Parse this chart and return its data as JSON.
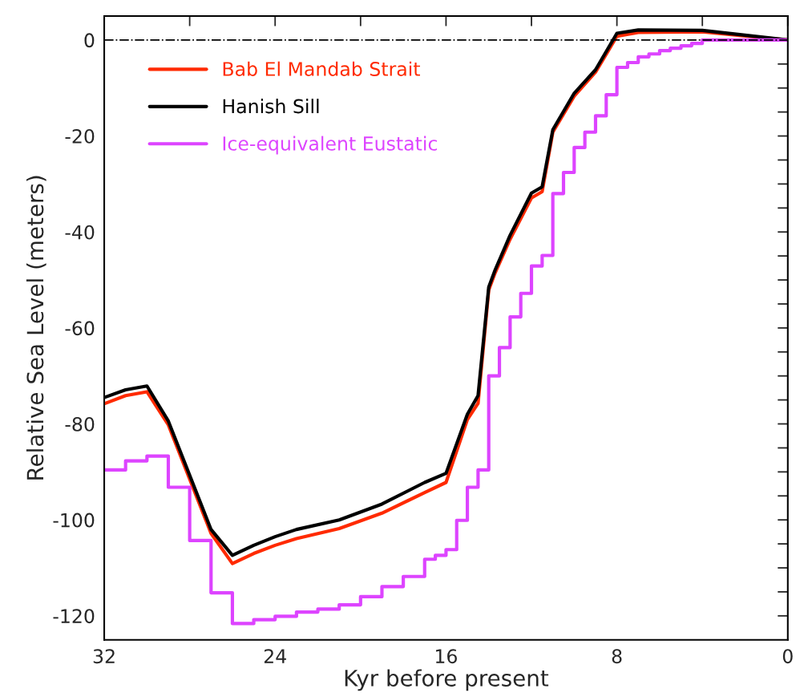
{
  "chart_data": {
    "type": "line",
    "xlabel": "Kyr before present",
    "ylabel": "Relative Sea Level (meters)",
    "xlim": [
      32,
      0
    ],
    "ylim": [
      -125,
      5
    ],
    "xticks": [
      32,
      {
        "value": 28,
        "label": null
      },
      24,
      {
        "value": 20,
        "label": null
      },
      16,
      {
        "value": 12,
        "label": null
      },
      8,
      {
        "value": 4,
        "label": null
      },
      0
    ],
    "yticks": [
      {
        "value": -120,
        "label": "-120"
      },
      {
        "value": -115,
        "label": null
      },
      {
        "value": -110,
        "label": null
      },
      {
        "value": -105,
        "label": null
      },
      {
        "value": -100,
        "label": "-100"
      },
      {
        "value": -95,
        "label": null
      },
      {
        "value": -90,
        "label": null
      },
      {
        "value": -85,
        "label": null
      },
      {
        "value": -80,
        "label": "-80"
      },
      {
        "value": -75,
        "label": null
      },
      {
        "value": -70,
        "label": null
      },
      {
        "value": -65,
        "label": null
      },
      {
        "value": -60,
        "label": "-60"
      },
      {
        "value": -55,
        "label": null
      },
      {
        "value": -50,
        "label": null
      },
      {
        "value": -45,
        "label": null
      },
      {
        "value": -40,
        "label": "-40"
      },
      {
        "value": -35,
        "label": null
      },
      {
        "value": -30,
        "label": null
      },
      {
        "value": -25,
        "label": null
      },
      {
        "value": -20,
        "label": "-20"
      },
      {
        "value": -15,
        "label": null
      },
      {
        "value": -10,
        "label": null
      },
      {
        "value": -5,
        "label": null
      },
      0
    ],
    "grid": false,
    "legend": "top left",
    "ref_lines": [
      {
        "axis": "y",
        "value": 0,
        "label": null,
        "color": "#000000",
        "line_style": "dashdot"
      }
    ],
    "series": [
      {
        "name": "Bab El Mandab Strait",
        "color": "#ff2a00",
        "x": [
          32,
          31,
          30,
          29,
          27,
          26,
          25,
          24,
          23,
          21,
          19,
          17,
          16,
          15,
          14.5,
          14,
          13.7,
          13,
          12,
          11.5,
          11,
          10,
          9,
          8,
          7,
          4,
          0
        ],
        "values": [
          -75.8,
          -74.1,
          -73.3,
          -80.2,
          -102.8,
          -109.1,
          -107,
          -105.3,
          -103.9,
          -101.8,
          -98.6,
          -94.3,
          -92.2,
          -79.1,
          -75.7,
          -52.1,
          -48.5,
          -41.5,
          -32.9,
          -31.6,
          -19.2,
          -11.7,
          -6.7,
          0.8,
          1.6,
          1.7,
          0
        ]
      },
      {
        "name": "Hanish Sill",
        "color": "#000000",
        "x": [
          32,
          31,
          30,
          29,
          27,
          26,
          25,
          24,
          23,
          21,
          19,
          17,
          16,
          15,
          14.5,
          14,
          13.7,
          13,
          12,
          11.5,
          11,
          10,
          9,
          8,
          7,
          4,
          0
        ],
        "values": [
          -74.5,
          -72.9,
          -72.1,
          -79.4,
          -102,
          -107.4,
          -105.3,
          -103.5,
          -102,
          -100,
          -96.7,
          -92.2,
          -90.3,
          -78,
          -74.1,
          -51.5,
          -47.9,
          -40.7,
          -31.9,
          -30.6,
          -18.7,
          -11.1,
          -6.2,
          1.4,
          2.1,
          2,
          0
        ]
      },
      {
        "name": "Ice-equivalent Eustatic",
        "color": "#dd44ff",
        "type": "step",
        "x": [
          32,
          31,
          30,
          29,
          28,
          27,
          26,
          25,
          24,
          23,
          22,
          21,
          20,
          19,
          18,
          17,
          16.5,
          16,
          15.5,
          15,
          14.5,
          14,
          13.5,
          13,
          12.5,
          12,
          11.5,
          11,
          10.5,
          10,
          9.5,
          9,
          8.5,
          8,
          7.5,
          7,
          6.5,
          6,
          5.5,
          5,
          4.5,
          4,
          0
        ],
        "values": [
          -89.6,
          -87.7,
          -86.7,
          -93.2,
          -104.3,
          -115.2,
          -121.6,
          -120.8,
          -120.1,
          -119.2,
          -118.6,
          -117.7,
          -116,
          -113.9,
          -111.8,
          -108.2,
          -107.4,
          -106.2,
          -100.1,
          -93.2,
          -89.6,
          -70,
          -64.1,
          -57.7,
          -52.8,
          -47.1,
          -44.9,
          -32,
          -27.6,
          -22.4,
          -19.2,
          -15.8,
          -11.4,
          -5.7,
          -4.7,
          -3.5,
          -2.9,
          -2.2,
          -1.7,
          -1.2,
          -0.7,
          0,
          0
        ]
      }
    ]
  }
}
